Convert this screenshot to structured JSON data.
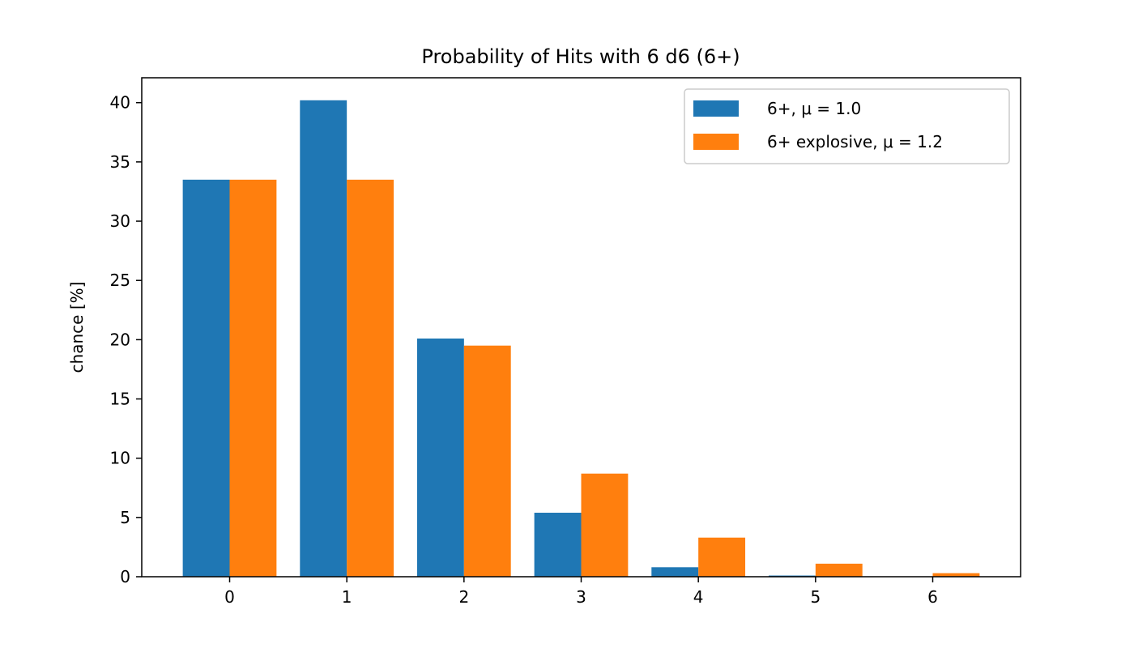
{
  "chart_data": {
    "type": "bar",
    "title": "Probability of Hits with 6 d6 (6+)",
    "xlabel": "",
    "ylabel": "chance [%]",
    "categories": [
      "0",
      "1",
      "2",
      "3",
      "4",
      "5",
      "6"
    ],
    "x": [
      0,
      1,
      2,
      3,
      4,
      5,
      6
    ],
    "xlim": [
      -0.75,
      6.75
    ],
    "ylim": [
      0,
      42.1
    ],
    "yticks": [
      0,
      5,
      10,
      15,
      20,
      25,
      30,
      35,
      40
    ],
    "grid": false,
    "legend_position": "top-right",
    "series": [
      {
        "name": "6+, μ = 1.0",
        "color": "#1f77b4",
        "values": [
          33.5,
          40.2,
          20.1,
          5.4,
          0.8,
          0.1,
          0.0
        ]
      },
      {
        "name": "6+ explosive, μ = 1.2",
        "color": "#ff7f0e",
        "values": [
          33.5,
          33.5,
          19.5,
          8.7,
          3.3,
          1.1,
          0.3
        ]
      }
    ]
  }
}
